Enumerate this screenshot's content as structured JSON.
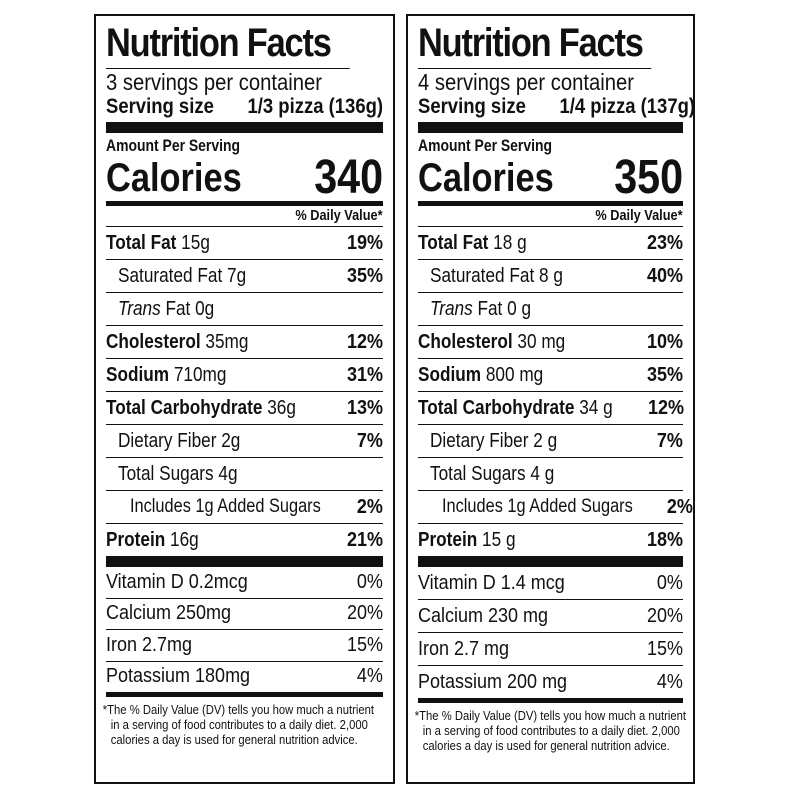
{
  "labels": [
    {
      "title": "Nutrition Facts",
      "servings": "3 servings per container",
      "serving_size_label": "Serving size",
      "serving_size_value": "1/3 pizza (136g)",
      "amount_per_serving": "Amount Per Serving",
      "calories_label": "Calories",
      "calories_value": "340",
      "dv_header": "% Daily Value*",
      "nutrients": [
        {
          "name": "Total Fat",
          "amount": "15g",
          "dv": "19%"
        },
        {
          "name": "Saturated Fat",
          "amount": "7g",
          "dv": "35%"
        },
        {
          "name": "Trans",
          "amount": "Fat 0g",
          "dv": ""
        },
        {
          "name": "Cholesterol",
          "amount": "35mg",
          "dv": "12%"
        },
        {
          "name": "Sodium",
          "amount": "710mg",
          "dv": "31%"
        },
        {
          "name": "Total Carbohydrate",
          "amount": "36g",
          "dv": "13%"
        },
        {
          "name": "Dietary Fiber",
          "amount": "2g",
          "dv": "7%"
        },
        {
          "name": "Total Sugars",
          "amount": "4g",
          "dv": ""
        },
        {
          "name": "Includes 1g Added Sugars",
          "amount": "",
          "dv": "2%"
        },
        {
          "name": "Protein",
          "amount": "16g",
          "dv": "21%"
        }
      ],
      "vitamins": [
        {
          "name": "Vitamin D 0.2mcg",
          "dv": "0%"
        },
        {
          "name": "Calcium 250mg",
          "dv": "20%"
        },
        {
          "name": "Iron 2.7mg",
          "dv": "15%"
        },
        {
          "name": "Potassium 180mg",
          "dv": "4%"
        }
      ],
      "footnote": [
        "*The % Daily Value (DV) tells you how much a nutrient",
        "in a serving of food contributes to a daily diet. 2,000",
        "calories a day is used for general nutrition advice."
      ]
    },
    {
      "title": "Nutrition Facts",
      "servings": "4 servings per container",
      "serving_size_label": "Serving size",
      "serving_size_value": "1/4 pizza (137g)",
      "amount_per_serving": "Amount Per Serving",
      "calories_label": "Calories",
      "calories_value": "350",
      "dv_header": "% Daily Value*",
      "nutrients": [
        {
          "name": "Total Fat",
          "amount": "18 g",
          "dv": "23%"
        },
        {
          "name": "Saturated Fat",
          "amount": "8 g",
          "dv": "40%"
        },
        {
          "name": "Trans",
          "amount": "Fat 0 g",
          "dv": ""
        },
        {
          "name": "Cholesterol",
          "amount": "30 mg",
          "dv": "10%"
        },
        {
          "name": "Sodium",
          "amount": "800 mg",
          "dv": "35%"
        },
        {
          "name": "Total Carbohydrate",
          "amount": "34 g",
          "dv": "12%"
        },
        {
          "name": "Dietary Fiber",
          "amount": "2 g",
          "dv": "7%"
        },
        {
          "name": "Total Sugars",
          "amount": "4 g",
          "dv": ""
        },
        {
          "name": "Includes 1g Added Sugars",
          "amount": "",
          "dv": "2%"
        },
        {
          "name": "Protein",
          "amount": "15 g",
          "dv": "18%"
        }
      ],
      "vitamins": [
        {
          "name": "Vitamin D 1.4 mcg",
          "dv": "0%"
        },
        {
          "name": "Calcium 230 mg",
          "dv": "20%"
        },
        {
          "name": "Iron 2.7 mg",
          "dv": "15%"
        },
        {
          "name": "Potassium 200 mg",
          "dv": "4%"
        }
      ],
      "footnote": [
        "*The % Daily Value (DV) tells you how much a nutrient",
        "in a serving of food contributes to a daily diet. 2,000",
        "calories a day is used for general nutrition advice."
      ]
    }
  ]
}
